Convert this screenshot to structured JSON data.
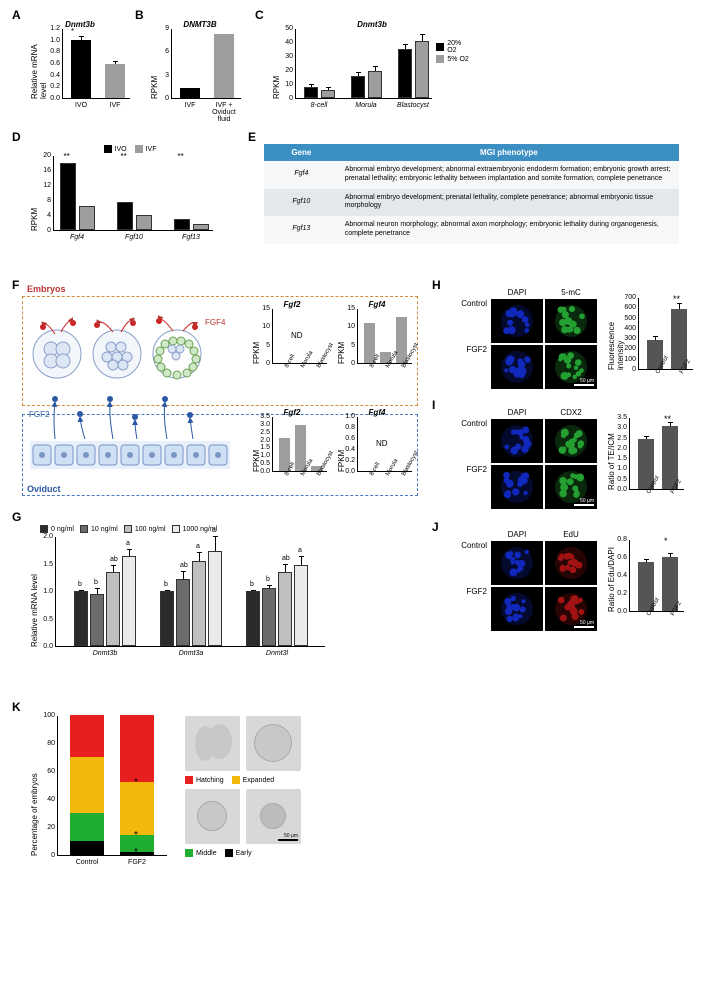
{
  "labels": {
    "A": "A",
    "B": "B",
    "C": "C",
    "D": "D",
    "E": "E",
    "F": "F",
    "G": "G",
    "H": "H",
    "I": "I",
    "J": "J",
    "K": "K"
  },
  "A": {
    "title": "Dnmt3b",
    "ytitle": "Relative mRNA level",
    "cats": [
      "IVO",
      "IVF"
    ],
    "vals": [
      1.0,
      0.58
    ],
    "errs": [
      0.05,
      0.04
    ],
    "colors": [
      "#000000",
      "#9e9e9e"
    ],
    "ylim": [
      0,
      1.2
    ],
    "ystep": 0.2,
    "sig": "*"
  },
  "B": {
    "title": "DNMT3B",
    "ytitle": "RPKM",
    "cats": [
      "IVF",
      "IVF +\nOviduct\nfluid"
    ],
    "vals": [
      1.3,
      8.2
    ],
    "colors": [
      "#000000",
      "#9e9e9e"
    ],
    "ylim": [
      0,
      9
    ],
    "ystep": 3
  },
  "C": {
    "title": "Dnmt3b",
    "ytitle": "RPKM",
    "cats": [
      "8-cell",
      "Morula",
      "Blastocyst"
    ],
    "series": [
      {
        "name": "20% O2",
        "color": "#000000",
        "vals": [
          8,
          16,
          35
        ],
        "errs": [
          1,
          2,
          3
        ]
      },
      {
        "name": "5% O2",
        "color": "#9e9e9e",
        "vals": [
          6,
          19,
          41
        ],
        "errs": [
          1,
          3,
          4
        ]
      }
    ],
    "ylim": [
      0,
      50
    ],
    "ystep": 10
  },
  "D": {
    "ytitle": "RPKM",
    "cats": [
      "Fgf4",
      "Fgf10",
      "Fgf13"
    ],
    "series": [
      {
        "name": "IVO",
        "color": "#000000",
        "vals": [
          18,
          7.5,
          3
        ]
      },
      {
        "name": "IVF",
        "color": "#9e9e9e",
        "vals": [
          6.5,
          4,
          1.5
        ]
      }
    ],
    "ylim": [
      0,
      20
    ],
    "ystep": 4,
    "sig": [
      "**",
      "**",
      "**"
    ]
  },
  "E": {
    "headers": [
      "Gene",
      "MGI phenotype"
    ],
    "rows": [
      {
        "gene": "Fgf4",
        "pheno": "Abnormal embryo development; abnormal extraembryonic endoderm formation; embryonic growth arrest; prenatal lethality; embryonic lethality between implantation and somite formation, complete penetrance",
        "bg": "#f5f7f9"
      },
      {
        "gene": "Fgf10",
        "pheno": "Abnormal embryo development; prenatal lethality, complete penetrance; abnormal embryonic tissue morphology",
        "bg": "#e5e8eb"
      },
      {
        "gene": "Fgf13",
        "pheno": "Abnormal neuron morphology; abnormal axon morphology; embryonic lethality during organogenesis, complete penetrance",
        "bg": "#f5f7f9"
      }
    ]
  },
  "F": {
    "embryos_label": "Embryos",
    "oviduct_label": "Oviduct",
    "fgf4_label": "FGF4",
    "fgf2_label": "FGF2",
    "charts": [
      {
        "title": "Fgf2",
        "ytitle": "FPKM",
        "cats": [
          "8-cell",
          "Morula",
          "Blastocyst"
        ],
        "vals": null,
        "nd": "ND",
        "ylim": [
          0,
          15
        ],
        "ystep": 5
      },
      {
        "title": "Fgf4",
        "ytitle": "FPKM",
        "cats": [
          "8-cell",
          "Morula",
          "Blastocyst"
        ],
        "vals": [
          11,
          3,
          12.5
        ],
        "ylim": [
          0,
          15
        ],
        "ystep": 5
      },
      {
        "title": "Fgf2",
        "ytitle": "FPKM",
        "cats": [
          "8-cell",
          "Morula",
          "Blastocyst"
        ],
        "vals": [
          2.1,
          2.9,
          0.35
        ],
        "ylim": [
          0,
          3.5
        ],
        "ystep": 0.5
      },
      {
        "title": "Fgf4",
        "ytitle": "FPKM",
        "cats": [
          "8-cell",
          "Morula",
          "Blastocyst"
        ],
        "vals": null,
        "nd": "ND",
        "ylim": [
          0,
          1.0
        ],
        "ystep": 0.2
      }
    ]
  },
  "G": {
    "ytitle": "Relative mRNA level",
    "cats": [
      "Dnmt3b",
      "Dnmt3a",
      "Dnmt3l"
    ],
    "series": [
      {
        "name": "0 ng/ml",
        "color": "#2b2b2b",
        "vals": [
          1.0,
          1.0,
          1.0
        ],
        "errs": [
          0,
          0,
          0
        ],
        "letters": [
          "b",
          "b",
          "b"
        ]
      },
      {
        "name": "10 ng/ml",
        "color": "#6b6b6b",
        "vals": [
          0.95,
          1.22,
          1.05
        ],
        "errs": [
          0.08,
          0.12,
          0.05
        ],
        "letters": [
          "b",
          "ab",
          "b"
        ]
      },
      {
        "name": "100 ng/ml",
        "color": "#bfbfbf",
        "vals": [
          1.35,
          1.55,
          1.35
        ],
        "errs": [
          0.1,
          0.15,
          0.12
        ],
        "letters": [
          "ab",
          "a",
          "ab"
        ]
      },
      {
        "name": "1000 ng/ml",
        "color": "#eaeaea",
        "vals": [
          1.63,
          1.72,
          1.48
        ],
        "errs": [
          0.12,
          0.26,
          0.13
        ],
        "letters": [
          "a",
          "a",
          "a"
        ]
      }
    ],
    "ylim": [
      0,
      2.0
    ],
    "ystep": 0.5
  },
  "H": {
    "rows": [
      "Control",
      "FGF2"
    ],
    "cols": [
      "DAPI",
      "5-mC"
    ],
    "colors": {
      "DAPI": "#1530dd",
      "stain": "#2bbb3a"
    },
    "chart_ytitle": "Fluorescence intensity",
    "cats": [
      "Control",
      "FGF2"
    ],
    "vals": [
      280,
      580
    ],
    "errs": [
      30,
      50
    ],
    "ylim": [
      0,
      700
    ],
    "ystep": 100,
    "sig": "**"
  },
  "I": {
    "rows": [
      "Control",
      "FGF2"
    ],
    "cols": [
      "DAPI",
      "CDX2"
    ],
    "colors": {
      "DAPI": "#1530dd",
      "stain": "#2bbb3a"
    },
    "chart_ytitle": "Ratio of TE/ICM",
    "cats": [
      "Control",
      "FGF2"
    ],
    "vals": [
      2.45,
      3.05
    ],
    "errs": [
      0.1,
      0.15
    ],
    "ylim": [
      0,
      3.5
    ],
    "ystep": 0.5,
    "sig": "**"
  },
  "J": {
    "rows": [
      "Control",
      "FGF2"
    ],
    "cols": [
      "DAPI",
      "EdU"
    ],
    "colors": {
      "DAPI": "#1530dd",
      "stain": "#c01717"
    },
    "chart_ytitle": "Ratio of Edu/DAPI",
    "cats": [
      "Control",
      "FGF2"
    ],
    "vals": [
      0.54,
      0.6
    ],
    "errs": [
      0.03,
      0.03
    ],
    "ylim": [
      0,
      0.8
    ],
    "ystep": 0.2,
    "sig": "*"
  },
  "K": {
    "ytitle": "Percentage of embryos",
    "cats": [
      "Control",
      "FGF2"
    ],
    "stacks": [
      {
        "name": "Hatching",
        "color": "#e81f1f",
        "vals": [
          30,
          48
        ]
      },
      {
        "name": "Expanded",
        "color": "#f2b90c",
        "vals": [
          40,
          38
        ]
      },
      {
        "name": "Middle",
        "color": "#1fae2f",
        "vals": [
          20,
          12
        ]
      },
      {
        "name": "Early",
        "color": "#000000",
        "vals": [
          10,
          2
        ]
      }
    ],
    "sig": [
      "*",
      "*",
      "*"
    ],
    "ylim": [
      0,
      100
    ],
    "ystep": 20,
    "legend": [
      [
        "Hatching",
        "#e81f1f"
      ],
      [
        "Expanded",
        "#f2b90c"
      ],
      [
        "Middle",
        "#1fae2f"
      ],
      [
        "Early",
        "#000000"
      ]
    ]
  }
}
